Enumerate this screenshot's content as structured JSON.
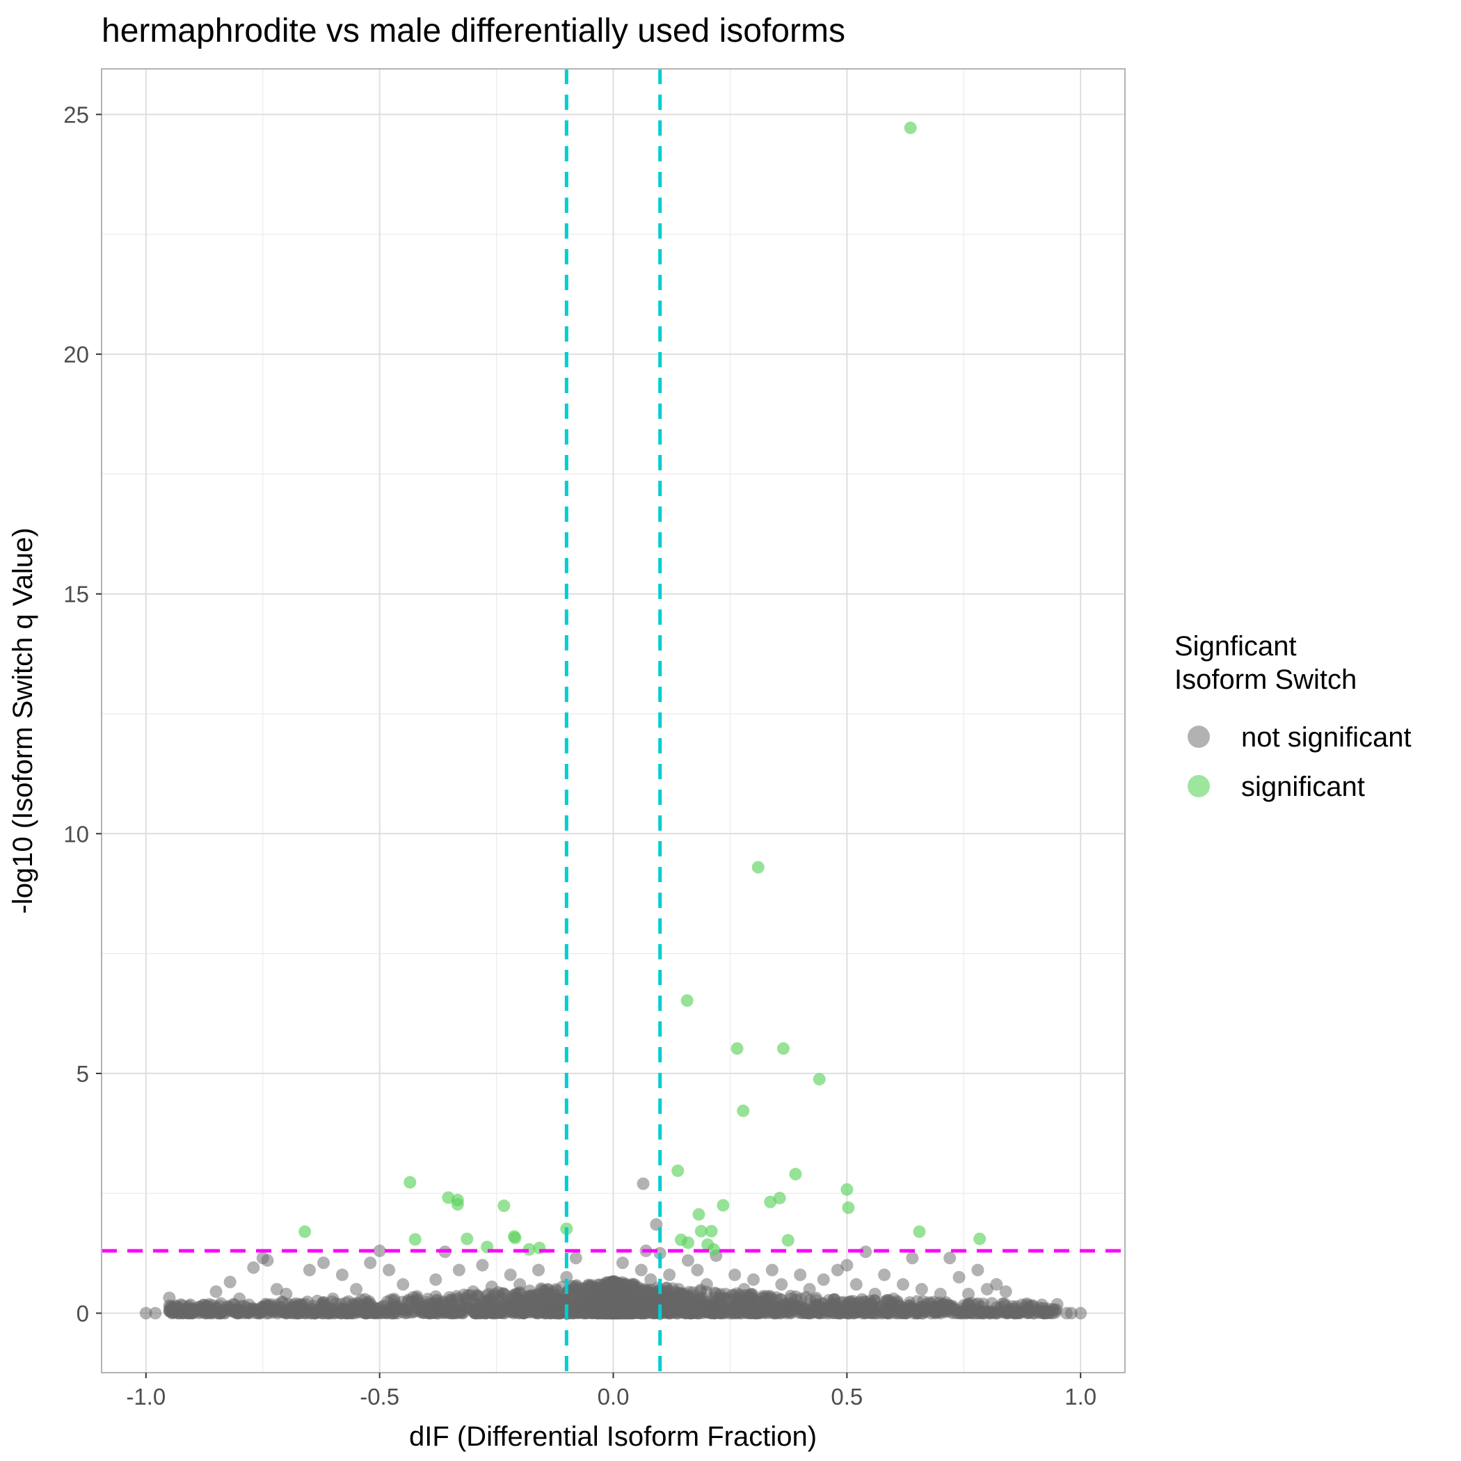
{
  "chart_data": {
    "type": "scatter",
    "title": "hermaphrodite vs male differentially used isoforms",
    "xlabel": "dIF (Differential Isoform Fraction)",
    "ylabel": "-log10 (Isoform Switch q Value)",
    "xlim": [
      -1.095,
      1.095
    ],
    "ylim": [
      -1.24,
      25.95
    ],
    "x_ticks": [
      {
        "value": -1.0,
        "label": "-1.0"
      },
      {
        "value": -0.5,
        "label": "-0.5"
      },
      {
        "value": 0.0,
        "label": "0.0"
      },
      {
        "value": 0.5,
        "label": "0.5"
      },
      {
        "value": 1.0,
        "label": "1.0"
      }
    ],
    "y_ticks": [
      {
        "value": 0,
        "label": "0"
      },
      {
        "value": 5,
        "label": "5"
      },
      {
        "value": 10,
        "label": "10"
      },
      {
        "value": 15,
        "label": "15"
      },
      {
        "value": 20,
        "label": "20"
      },
      {
        "value": 25,
        "label": "25"
      }
    ],
    "grid": true,
    "legend": {
      "title_lines": [
        "Signficant",
        "Isoform Switch"
      ],
      "placement": "right",
      "items": [
        {
          "label": "not significant",
          "color": "#666666"
        },
        {
          "label": "significant",
          "color": "#5dd35d"
        }
      ]
    },
    "reference_lines": [
      {
        "orientation": "vertical",
        "value": -0.1,
        "color": "#00ced1",
        "style": "dashed"
      },
      {
        "orientation": "vertical",
        "value": 0.1,
        "color": "#00ced1",
        "style": "dashed"
      },
      {
        "orientation": "horizontal",
        "value": 1.3,
        "color": "#ff00ff",
        "style": "dashed"
      }
    ],
    "series": [
      {
        "name": "significant",
        "color": "#5dd35d",
        "points": [
          [
            0.636,
            24.72
          ],
          [
            0.31,
            9.3
          ],
          [
            0.158,
            6.52
          ],
          [
            0.265,
            5.52
          ],
          [
            0.364,
            5.52
          ],
          [
            0.441,
            4.88
          ],
          [
            0.278,
            4.22
          ],
          [
            0.138,
            2.97
          ],
          [
            0.39,
            2.9
          ],
          [
            0.5,
            2.58
          ],
          [
            0.356,
            2.4
          ],
          [
            0.336,
            2.32
          ],
          [
            0.235,
            2.25
          ],
          [
            0.503,
            2.2
          ],
          [
            0.183,
            2.06
          ],
          [
            0.188,
            1.71
          ],
          [
            0.21,
            1.71
          ],
          [
            0.655,
            1.7
          ],
          [
            0.145,
            1.53
          ],
          [
            0.16,
            1.47
          ],
          [
            0.202,
            1.43
          ],
          [
            0.374,
            1.52
          ],
          [
            0.784,
            1.55
          ],
          [
            0.215,
            1.33
          ],
          [
            -0.435,
            2.73
          ],
          [
            -0.353,
            2.41
          ],
          [
            -0.333,
            2.36
          ],
          [
            -0.333,
            2.27
          ],
          [
            -0.234,
            2.24
          ],
          [
            -0.66,
            1.7
          ],
          [
            -0.212,
            1.6
          ],
          [
            -0.21,
            1.57
          ],
          [
            -0.1,
            1.76
          ],
          [
            -0.424,
            1.54
          ],
          [
            -0.313,
            1.55
          ],
          [
            -0.27,
            1.38
          ],
          [
            -0.158,
            1.36
          ],
          [
            -0.18,
            1.33
          ]
        ]
      },
      {
        "name": "not significant",
        "color": "#666666",
        "points": [
          [
            0.064,
            2.7
          ],
          [
            0.092,
            1.85
          ],
          [
            0.1,
            1.25
          ],
          [
            0.07,
            1.3
          ],
          [
            -1.0,
            0.0
          ],
          [
            -0.98,
            0.0
          ],
          [
            -0.95,
            0.32
          ],
          [
            -0.93,
            0.0
          ],
          [
            -0.9,
            0.0
          ],
          [
            -0.85,
            0.45
          ],
          [
            -0.82,
            0.65
          ],
          [
            -0.8,
            0.3
          ],
          [
            -0.8,
            0.0
          ],
          [
            -0.77,
            0.95
          ],
          [
            -0.75,
            1.15
          ],
          [
            -0.74,
            1.1
          ],
          [
            -0.72,
            0.5
          ],
          [
            -0.7,
            0.4
          ],
          [
            -0.68,
            0.2
          ],
          [
            -0.65,
            0.9
          ],
          [
            -0.62,
            1.05
          ],
          [
            -0.6,
            0.3
          ],
          [
            -0.58,
            0.8
          ],
          [
            -0.55,
            0.5
          ],
          [
            -0.52,
            1.05
          ],
          [
            -0.5,
            1.3
          ],
          [
            -0.48,
            0.9
          ],
          [
            -0.45,
            0.6
          ],
          [
            -0.42,
            0.35
          ],
          [
            -0.38,
            0.7
          ],
          [
            -0.36,
            1.28
          ],
          [
            -0.33,
            0.9
          ],
          [
            -0.3,
            0.45
          ],
          [
            -0.28,
            1.0
          ],
          [
            -0.26,
            0.55
          ],
          [
            -0.24,
            0.3
          ],
          [
            -0.22,
            0.8
          ],
          [
            -0.2,
            0.6
          ],
          [
            -0.18,
            0.35
          ],
          [
            -0.16,
            0.9
          ],
          [
            -0.14,
            0.5
          ],
          [
            -0.12,
            0.3
          ],
          [
            -0.1,
            0.75
          ],
          [
            -0.08,
            1.15
          ],
          [
            -0.06,
            0.5
          ],
          [
            -0.04,
            0.2
          ],
          [
            -0.02,
            0.4
          ],
          [
            0.0,
            0.3
          ],
          [
            0.02,
            1.05
          ],
          [
            0.04,
            0.6
          ],
          [
            0.06,
            0.9
          ],
          [
            0.08,
            0.7
          ],
          [
            0.12,
            0.8
          ],
          [
            0.14,
            0.5
          ],
          [
            0.16,
            1.1
          ],
          [
            0.18,
            0.9
          ],
          [
            0.2,
            0.6
          ],
          [
            0.22,
            1.2
          ],
          [
            0.24,
            0.4
          ],
          [
            0.26,
            0.8
          ],
          [
            0.28,
            0.5
          ],
          [
            0.3,
            0.7
          ],
          [
            0.32,
            0.35
          ],
          [
            0.34,
            0.9
          ],
          [
            0.36,
            0.6
          ],
          [
            0.38,
            0.3
          ],
          [
            0.4,
            0.8
          ],
          [
            0.42,
            0.5
          ],
          [
            0.45,
            0.7
          ],
          [
            0.48,
            0.9
          ],
          [
            0.5,
            1.0
          ],
          [
            0.52,
            0.6
          ],
          [
            0.54,
            1.28
          ],
          [
            0.56,
            0.4
          ],
          [
            0.58,
            0.8
          ],
          [
            0.6,
            0.3
          ],
          [
            0.62,
            0.6
          ],
          [
            0.64,
            1.15
          ],
          [
            0.66,
            0.5
          ],
          [
            0.68,
            0.2
          ],
          [
            0.7,
            0.4
          ],
          [
            0.72,
            1.15
          ],
          [
            0.74,
            0.75
          ],
          [
            0.76,
            0.4
          ],
          [
            0.78,
            0.9
          ],
          [
            0.8,
            0.5
          ],
          [
            0.82,
            0.6
          ],
          [
            0.84,
            0.45
          ],
          [
            0.86,
            0.0
          ],
          [
            0.9,
            0.0
          ],
          [
            0.94,
            0.0
          ],
          [
            0.97,
            0.0
          ],
          [
            1.0,
            0.0
          ],
          [
            0.98,
            0.0
          ],
          [
            -0.86,
            0.0
          ],
          [
            -0.84,
            0.0
          ],
          [
            -0.76,
            0.0
          ],
          [
            -0.7,
            0.0
          ],
          [
            -0.64,
            0.0
          ],
          [
            -0.56,
            0.0
          ]
        ]
      }
    ]
  }
}
